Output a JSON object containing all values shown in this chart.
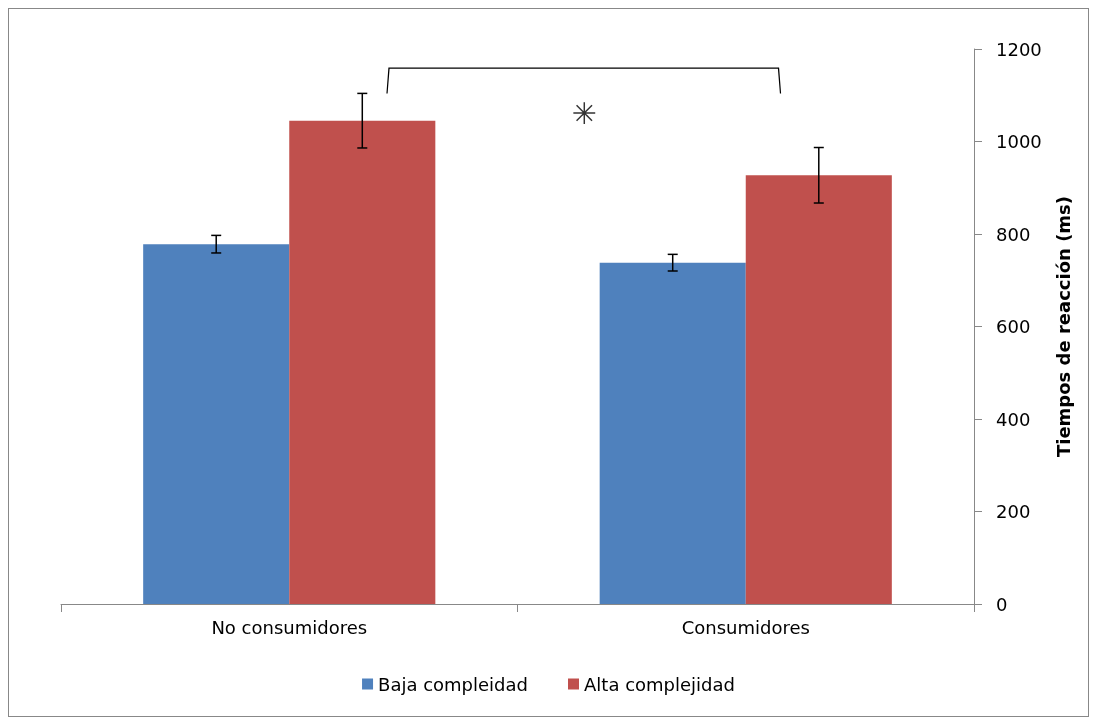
{
  "chart_data": {
    "type": "bar",
    "ylabel": "Tiempos de reacción (ms)",
    "categories": [
      "No consumidores",
      "Consumidores"
    ],
    "series": [
      {
        "name": "Baja compleidad",
        "color": "#4f81bd",
        "values": [
          778,
          738
        ],
        "errors": [
          19,
          18
        ]
      },
      {
        "name": "Alta complejidad",
        "color": "#c0504d",
        "values": [
          1045,
          927
        ],
        "errors": [
          59,
          60
        ]
      }
    ],
    "ylim": [
      0,
      1200
    ],
    "yticks": [
      0,
      200,
      400,
      600,
      800,
      1000,
      1200
    ],
    "grid": false,
    "legend": "bottom",
    "annotations": [
      "✳"
    ]
  }
}
